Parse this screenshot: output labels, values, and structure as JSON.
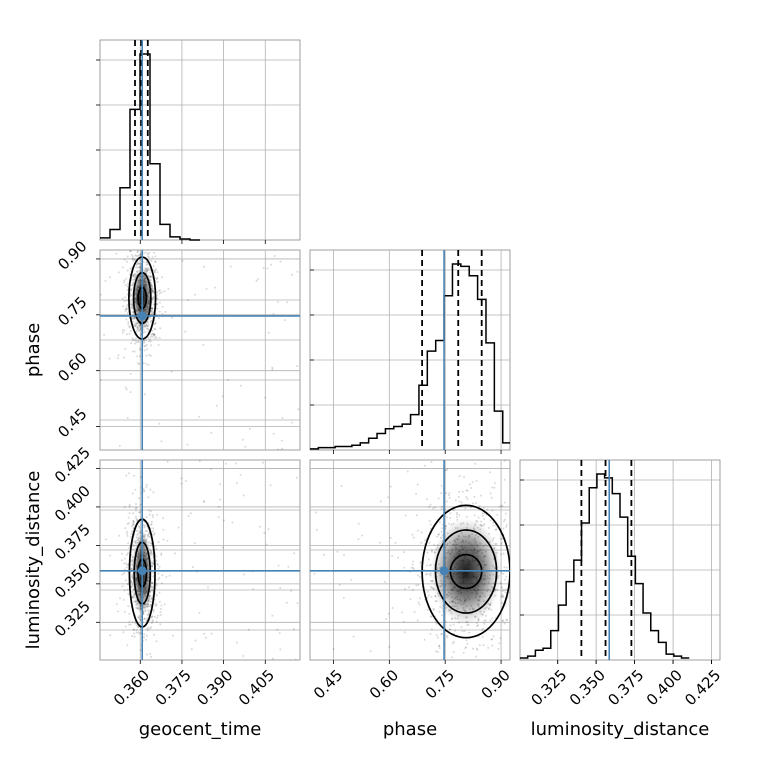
{
  "chart_data": {
    "type": "corner",
    "parameters": [
      "geocent_time",
      "phase",
      "luminosity_distance"
    ],
    "axis_labels": {
      "geocent_time": "geocent_time",
      "phase": "phase",
      "luminosity_distance": "luminosity_distance"
    },
    "ranges": {
      "geocent_time": [
        0.3455,
        0.4175
      ],
      "phase": [
        0.387,
        0.924
      ],
      "luminosity_distance": [
        0.3005,
        0.4305
      ]
    },
    "ticks": {
      "geocent_time": [
        0.36,
        0.375,
        0.39,
        0.405
      ],
      "phase": [
        0.45,
        0.6,
        0.75,
        0.9
      ],
      "luminosity_distance": [
        0.325,
        0.35,
        0.375,
        0.4,
        0.425
      ]
    },
    "tick_labels": {
      "geocent_time": [
        "0.360",
        "0.375",
        "0.390",
        "0.405"
      ],
      "phase": [
        "0.45",
        "0.60",
        "0.75",
        "0.90"
      ],
      "luminosity_distance": [
        "0.325",
        "0.350",
        "0.375",
        "0.400",
        "0.425"
      ]
    },
    "truths": {
      "geocent_time": 0.3607,
      "phase": 0.747,
      "luminosity_distance": 0.3585
    },
    "quantiles": {
      "geocent_time": [
        0.3581,
        0.3603,
        0.3627
      ],
      "phase": [
        0.688,
        0.785,
        0.848
      ],
      "luminosity_distance": [
        0.3404,
        0.3561,
        0.3729
      ]
    },
    "histograms": {
      "geocent_time": {
        "bin_edges": [
          0.3455,
          0.3491,
          0.3527,
          0.3563,
          0.3599,
          0.3635,
          0.3671,
          0.3707,
          0.3743,
          0.3779,
          0.3815
        ],
        "counts": [
          2,
          10,
          50,
          125,
          178,
          73,
          15,
          3,
          1,
          0
        ]
      },
      "phase": {
        "bin_edges": [
          0.387,
          0.4095,
          0.432,
          0.4545,
          0.477,
          0.4995,
          0.522,
          0.5445,
          0.567,
          0.5895,
          0.612,
          0.6345,
          0.657,
          0.6795,
          0.702,
          0.7245,
          0.747,
          0.7695,
          0.792,
          0.8145,
          0.837,
          0.8595,
          0.882,
          0.9045,
          0.924
        ],
        "counts": [
          1,
          2,
          2,
          3,
          3,
          4,
          6,
          10,
          14,
          18,
          20,
          22,
          30,
          55,
          84,
          93,
          131,
          158,
          156,
          148,
          128,
          91,
          33,
          6
        ]
      },
      "luminosity_distance": {
        "bin_edges": [
          0.3005,
          0.3055,
          0.3105,
          0.3155,
          0.3205,
          0.3255,
          0.3305,
          0.3355,
          0.3405,
          0.3455,
          0.3505,
          0.3555,
          0.3605,
          0.3655,
          0.3705,
          0.3755,
          0.3805,
          0.3855,
          0.3905,
          0.3955,
          0.4005,
          0.4055,
          0.4105
        ],
        "counts": [
          1,
          2,
          5,
          6,
          15,
          28,
          40,
          51,
          70,
          88,
          95,
          93,
          85,
          73,
          53,
          39,
          24,
          15,
          9,
          3,
          2,
          1
        ]
      }
    },
    "density_2d": [
      {
        "x": "geocent_time",
        "y": "phase",
        "center": [
          0.3607,
          0.795
        ],
        "contour_half_widths": [
          [
            0.0015,
            0.028
          ],
          [
            0.0031,
            0.068
          ],
          [
            0.0048,
            0.11
          ]
        ]
      },
      {
        "x": "geocent_time",
        "y": "luminosity_distance",
        "center": [
          0.3607,
          0.357
        ],
        "contour_half_widths": [
          [
            0.0015,
            0.009
          ],
          [
            0.0029,
            0.02
          ],
          [
            0.0046,
            0.035
          ]
        ]
      },
      {
        "x": "phase",
        "y": "luminosity_distance",
        "center": [
          0.806,
          0.358
        ],
        "contour_half_widths": [
          [
            0.042,
            0.011
          ],
          [
            0.082,
            0.027
          ],
          [
            0.118,
            0.043
          ]
        ]
      }
    ],
    "grid": true,
    "colors": {
      "histogram": "#000000",
      "truth": "#4682b4",
      "contour": "#000000",
      "density": "#000000",
      "grid": "#b0b0b0",
      "frame": "#888888"
    }
  }
}
